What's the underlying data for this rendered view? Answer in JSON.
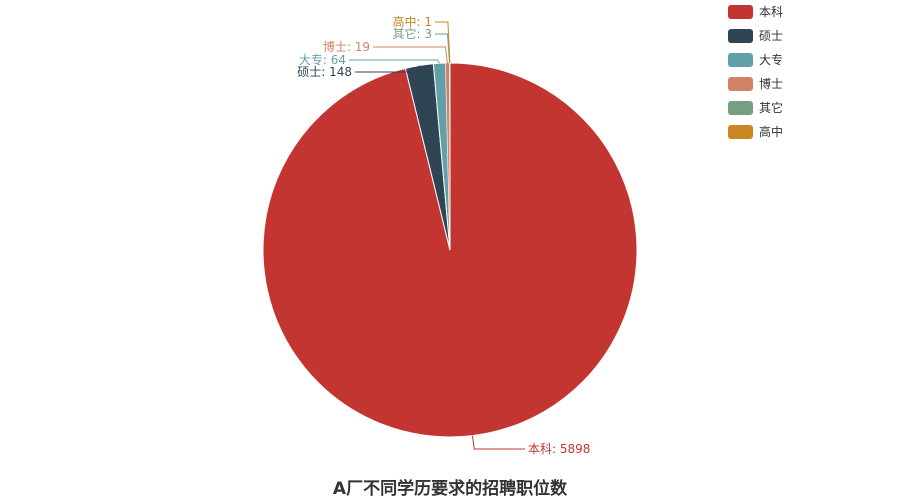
{
  "chart_data": {
    "type": "pie",
    "title": "A厂不同学历要求的招聘职位数",
    "legend_position": "top-right",
    "slices": [
      {
        "name": "本科",
        "value": 5898,
        "color": "#c23531"
      },
      {
        "name": "硕士",
        "value": 148,
        "color": "#2f4554"
      },
      {
        "name": "大专",
        "value": 64,
        "color": "#61a0a8"
      },
      {
        "name": "博士",
        "value": 19,
        "color": "#d48265"
      },
      {
        "name": "其它",
        "value": 3,
        "color": "#749f83"
      },
      {
        "name": "高中",
        "value": 1,
        "color": "#ca8622"
      }
    ]
  }
}
